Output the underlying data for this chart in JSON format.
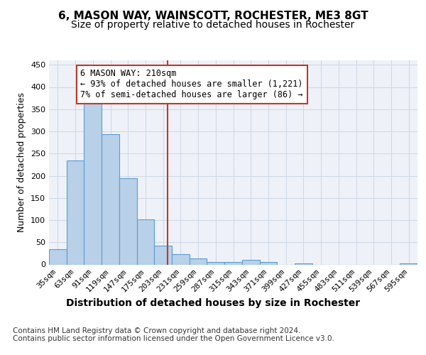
{
  "title": "6, MASON WAY, WAINSCOTT, ROCHESTER, ME3 8GT",
  "subtitle": "Size of property relative to detached houses in Rochester",
  "xlabel_bottom": "Distribution of detached houses by size in Rochester",
  "ylabel": "Number of detached properties",
  "categories": [
    "35sqm",
    "63sqm",
    "91sqm",
    "119sqm",
    "147sqm",
    "175sqm",
    "203sqm",
    "231sqm",
    "259sqm",
    "287sqm",
    "315sqm",
    "343sqm",
    "371sqm",
    "399sqm",
    "427sqm",
    "455sqm",
    "483sqm",
    "511sqm",
    "539sqm",
    "567sqm",
    "595sqm"
  ],
  "values": [
    35,
    234,
    365,
    293,
    195,
    101,
    43,
    23,
    13,
    5,
    6,
    10,
    5,
    0,
    3,
    0,
    0,
    0,
    0,
    0,
    3
  ],
  "bar_color": "#b8d0e8",
  "bar_edgecolor": "#5b9bd5",
  "property_line_color": "#c0392b",
  "annotation_box_text": "6 MASON WAY: 210sqm\n← 93% of detached houses are smaller (1,221)\n7% of semi-detached houses are larger (86) →",
  "annotation_box_facecolor": "white",
  "annotation_box_edgecolor": "#c0392b",
  "ylim": [
    0,
    460
  ],
  "yticks": [
    0,
    50,
    100,
    150,
    200,
    250,
    300,
    350,
    400,
    450
  ],
  "grid_color": "#d0d8e8",
  "background_color": "#eef2f8",
  "footer_line1": "Contains HM Land Registry data © Crown copyright and database right 2024.",
  "footer_line2": "Contains public sector information licensed under the Open Government Licence v3.0.",
  "title_fontsize": 11,
  "subtitle_fontsize": 10,
  "tick_fontsize": 8,
  "ylabel_fontsize": 9,
  "annotation_fontsize": 8.5,
  "footer_fontsize": 7.5
}
